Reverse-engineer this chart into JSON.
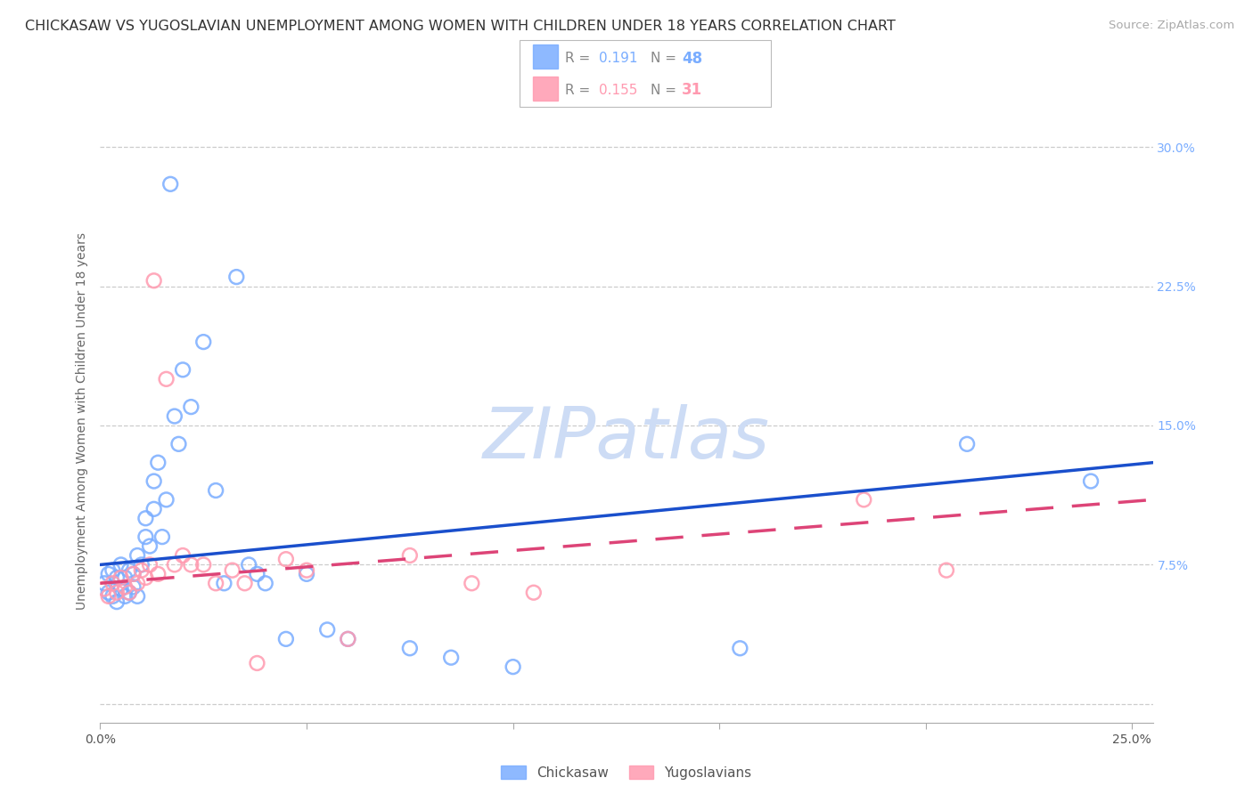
{
  "title": "CHICKASAW VS YUGOSLAVIAN UNEMPLOYMENT AMONG WOMEN WITH CHILDREN UNDER 18 YEARS CORRELATION CHART",
  "source": "Source: ZipAtlas.com",
  "ylabel": "Unemployment Among Women with Children Under 18 years",
  "xlim": [
    0.0,
    0.255
  ],
  "ylim": [
    -0.01,
    0.315
  ],
  "chickasaw_R": 0.191,
  "chickasaw_N": 48,
  "yugoslavian_R": 0.155,
  "yugoslavian_N": 31,
  "blue_color": "#7aadff",
  "pink_color": "#ff9ab0",
  "trend_blue": "#1a4fcc",
  "trend_pink": "#dd4477",
  "watermark_color": "#cddcf5",
  "title_fontsize": 11.5,
  "source_fontsize": 9.5,
  "axis_label_fontsize": 10,
  "tick_fontsize": 10,
  "chickasaw_x": [
    0.001,
    0.002,
    0.002,
    0.003,
    0.003,
    0.004,
    0.004,
    0.005,
    0.005,
    0.006,
    0.006,
    0.007,
    0.007,
    0.008,
    0.008,
    0.009,
    0.009,
    0.01,
    0.011,
    0.011,
    0.012,
    0.013,
    0.013,
    0.014,
    0.015,
    0.016,
    0.017,
    0.018,
    0.019,
    0.02,
    0.022,
    0.025,
    0.028,
    0.03,
    0.033,
    0.036,
    0.038,
    0.04,
    0.045,
    0.05,
    0.055,
    0.06,
    0.075,
    0.085,
    0.1,
    0.155,
    0.21,
    0.24
  ],
  "chickasaw_y": [
    0.065,
    0.06,
    0.07,
    0.058,
    0.072,
    0.055,
    0.068,
    0.062,
    0.075,
    0.058,
    0.068,
    0.06,
    0.072,
    0.063,
    0.07,
    0.058,
    0.08,
    0.075,
    0.09,
    0.1,
    0.085,
    0.12,
    0.105,
    0.13,
    0.09,
    0.11,
    0.28,
    0.155,
    0.14,
    0.18,
    0.16,
    0.195,
    0.115,
    0.065,
    0.23,
    0.075,
    0.07,
    0.065,
    0.035,
    0.07,
    0.04,
    0.035,
    0.03,
    0.025,
    0.02,
    0.03,
    0.14,
    0.12
  ],
  "yugoslavian_x": [
    0.001,
    0.002,
    0.003,
    0.004,
    0.005,
    0.006,
    0.007,
    0.008,
    0.009,
    0.01,
    0.011,
    0.012,
    0.013,
    0.014,
    0.016,
    0.018,
    0.02,
    0.022,
    0.025,
    0.028,
    0.032,
    0.035,
    0.038,
    0.045,
    0.05,
    0.06,
    0.075,
    0.09,
    0.105,
    0.185,
    0.205
  ],
  "yugoslavian_y": [
    0.062,
    0.058,
    0.065,
    0.06,
    0.068,
    0.063,
    0.06,
    0.07,
    0.065,
    0.072,
    0.068,
    0.075,
    0.228,
    0.07,
    0.175,
    0.075,
    0.08,
    0.075,
    0.075,
    0.065,
    0.072,
    0.065,
    0.022,
    0.078,
    0.072,
    0.035,
    0.08,
    0.065,
    0.06,
    0.11,
    0.072
  ],
  "trend_blue_x0": 0.0,
  "trend_blue_y0": 0.075,
  "trend_blue_x1": 0.255,
  "trend_blue_y1": 0.13,
  "trend_pink_x0": 0.0,
  "trend_pink_y0": 0.065,
  "trend_pink_x1": 0.255,
  "trend_pink_y1": 0.11
}
